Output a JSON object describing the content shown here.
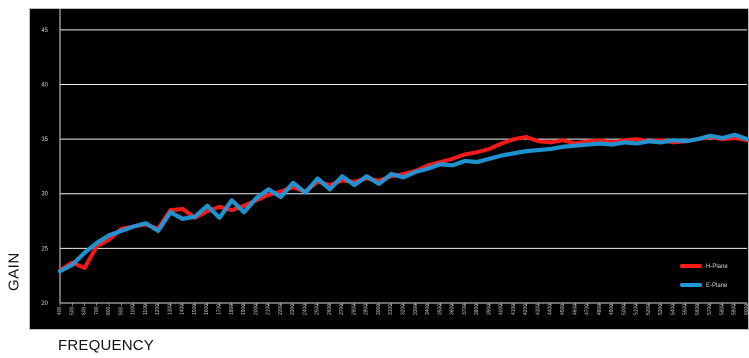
{
  "chart_data": {
    "type": "line",
    "xlabel": "FREQUENCY",
    "ylabel": "GAIN",
    "x": [
      400,
      500,
      600,
      700,
      800,
      900,
      1000,
      1100,
      1200,
      1300,
      1400,
      1500,
      1600,
      1700,
      1800,
      1900,
      2000,
      2100,
      2200,
      2300,
      2400,
      2500,
      2600,
      2700,
      2800,
      2900,
      3000,
      3100,
      3200,
      3300,
      3400,
      3500,
      3600,
      3700,
      3800,
      3900,
      4000,
      4100,
      4200,
      4300,
      4400,
      4500,
      4600,
      4700,
      4800,
      4900,
      5000,
      5100,
      5200,
      5300,
      5400,
      5500,
      5600,
      5700,
      5800,
      5900,
      6000
    ],
    "ylim": [
      20,
      47
    ],
    "yticks": [
      20,
      25,
      30,
      35,
      40,
      45
    ],
    "grid": true,
    "legend_position": "bottom-right",
    "series": [
      {
        "name": "H-Plane",
        "color": "#ff1a1a",
        "values": [
          23.0,
          23.7,
          23.2,
          25.2,
          25.8,
          26.8,
          27.0,
          27.2,
          26.8,
          28.5,
          28.6,
          27.8,
          28.4,
          28.8,
          28.5,
          28.9,
          29.4,
          29.9,
          30.2,
          30.6,
          30.2,
          31.1,
          30.8,
          31.2,
          31.1,
          31.4,
          31.2,
          31.6,
          31.8,
          32.1,
          32.6,
          32.9,
          33.2,
          33.6,
          33.8,
          34.1,
          34.6,
          35.0,
          35.2,
          34.8,
          34.7,
          34.9,
          34.6,
          34.8,
          34.9,
          34.7,
          34.9,
          35.0,
          34.8,
          34.9,
          34.7,
          34.8,
          35.0,
          35.2,
          35.0,
          35.1,
          34.9
        ]
      },
      {
        "name": "E-Plane",
        "color": "#1f9ad9",
        "values": [
          22.9,
          23.5,
          24.6,
          25.5,
          26.2,
          26.6,
          27.0,
          27.3,
          26.6,
          28.3,
          27.7,
          27.9,
          28.9,
          27.8,
          29.4,
          28.3,
          29.6,
          30.4,
          29.7,
          31.0,
          30.1,
          31.4,
          30.4,
          31.6,
          30.8,
          31.6,
          30.9,
          31.8,
          31.5,
          32.0,
          32.3,
          32.7,
          32.6,
          33.0,
          32.9,
          33.2,
          33.5,
          33.7,
          33.9,
          34.0,
          34.1,
          34.3,
          34.4,
          34.5,
          34.6,
          34.5,
          34.7,
          34.6,
          34.8,
          34.7,
          34.9,
          34.8,
          35.0,
          35.3,
          35.1,
          35.4,
          35.0
        ]
      }
    ]
  }
}
